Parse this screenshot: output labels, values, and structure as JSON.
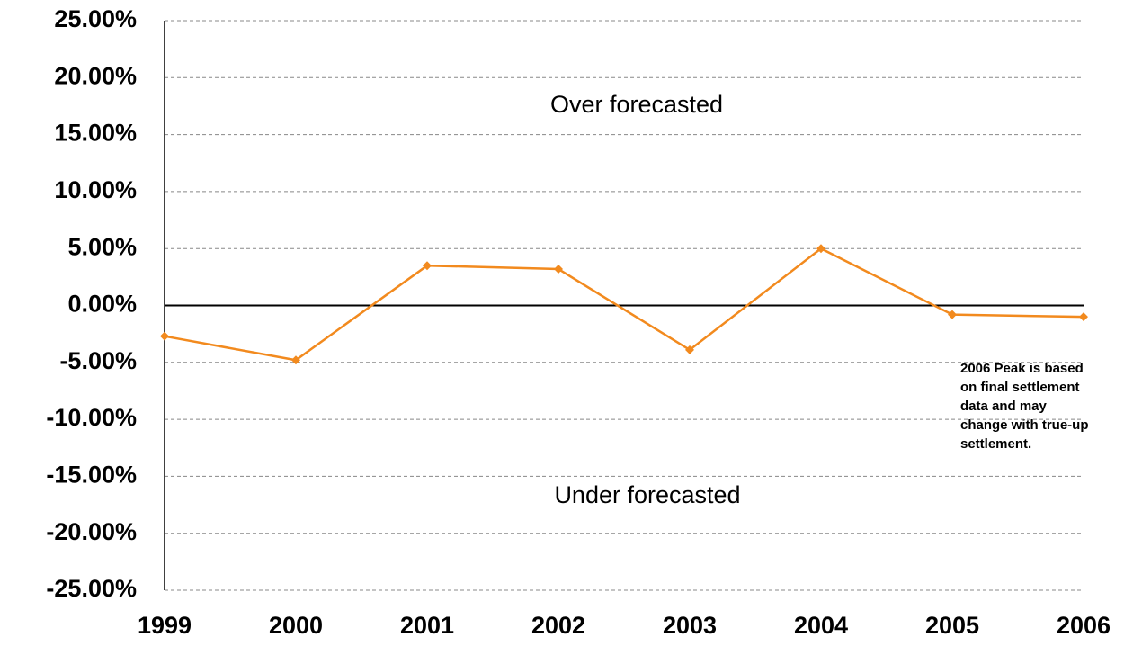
{
  "chart_data": {
    "type": "line",
    "categories": [
      "1999",
      "2000",
      "2001",
      "2002",
      "2003",
      "2004",
      "2005",
      "2006"
    ],
    "series": [
      {
        "color": "#f28a1e",
        "values": [
          -2.7,
          -4.8,
          3.5,
          3.2,
          -3.9,
          5.0,
          -0.8,
          -1.0
        ]
      }
    ],
    "ylim": [
      -25,
      25
    ],
    "yticks": [
      {
        "value": 25,
        "label": "25.00%"
      },
      {
        "value": 20,
        "label": "20.00%"
      },
      {
        "value": 15,
        "label": "15.00%"
      },
      {
        "value": 10,
        "label": "10.00%"
      },
      {
        "value": 5,
        "label": "5.00%"
      },
      {
        "value": 0,
        "label": "0.00%"
      },
      {
        "value": -5,
        "label": "-5.00%"
      },
      {
        "value": -10,
        "label": "-10.00%"
      },
      {
        "value": -15,
        "label": "-15.00%"
      },
      {
        "value": -20,
        "label": "-20.00%"
      },
      {
        "value": -25,
        "label": "-25.00%"
      }
    ],
    "grid": true,
    "annotations": [
      "Over forecasted",
      "Under forecasted"
    ],
    "note": [
      "2006 Peak is based",
      "on final settlement",
      "data and may",
      "change with true-up",
      "settlement."
    ]
  }
}
